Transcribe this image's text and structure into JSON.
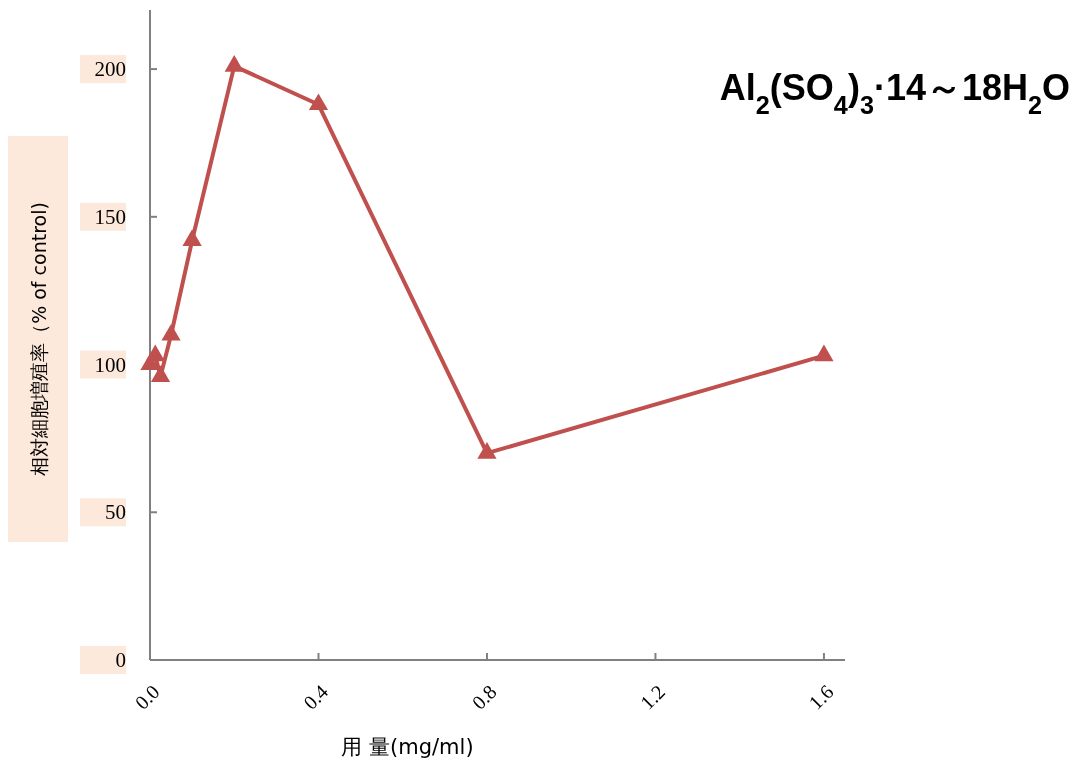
{
  "chart_data": {
    "type": "line",
    "title": "Al$_{2}$(SO$_{4}$)$_{3}$·14～18H$_{2}$O",
    "xlabel": "用 量(mg/ml)",
    "ylabel": "相対細胞増殖率（% of control)",
    "x": [
      0,
      0.0125,
      0.025,
      0.05,
      0.1,
      0.2,
      0.4,
      0.8,
      1.6
    ],
    "series": [
      {
        "color": "#c0504d",
        "values": [
          100,
          103,
          96,
          110,
          142,
          201,
          188,
          70,
          103
        ]
      }
    ],
    "xlim": [
      0,
      1.65
    ],
    "xticks": [
      {
        "value": 0,
        "label": "0.0"
      },
      0.4,
      0.8,
      1.2,
      1.6
    ],
    "ylim": [
      0,
      220
    ],
    "yticks": [
      0,
      50,
      100,
      150,
      200
    ],
    "grid": false,
    "marker": "triangle",
    "line_style": "solid"
  }
}
